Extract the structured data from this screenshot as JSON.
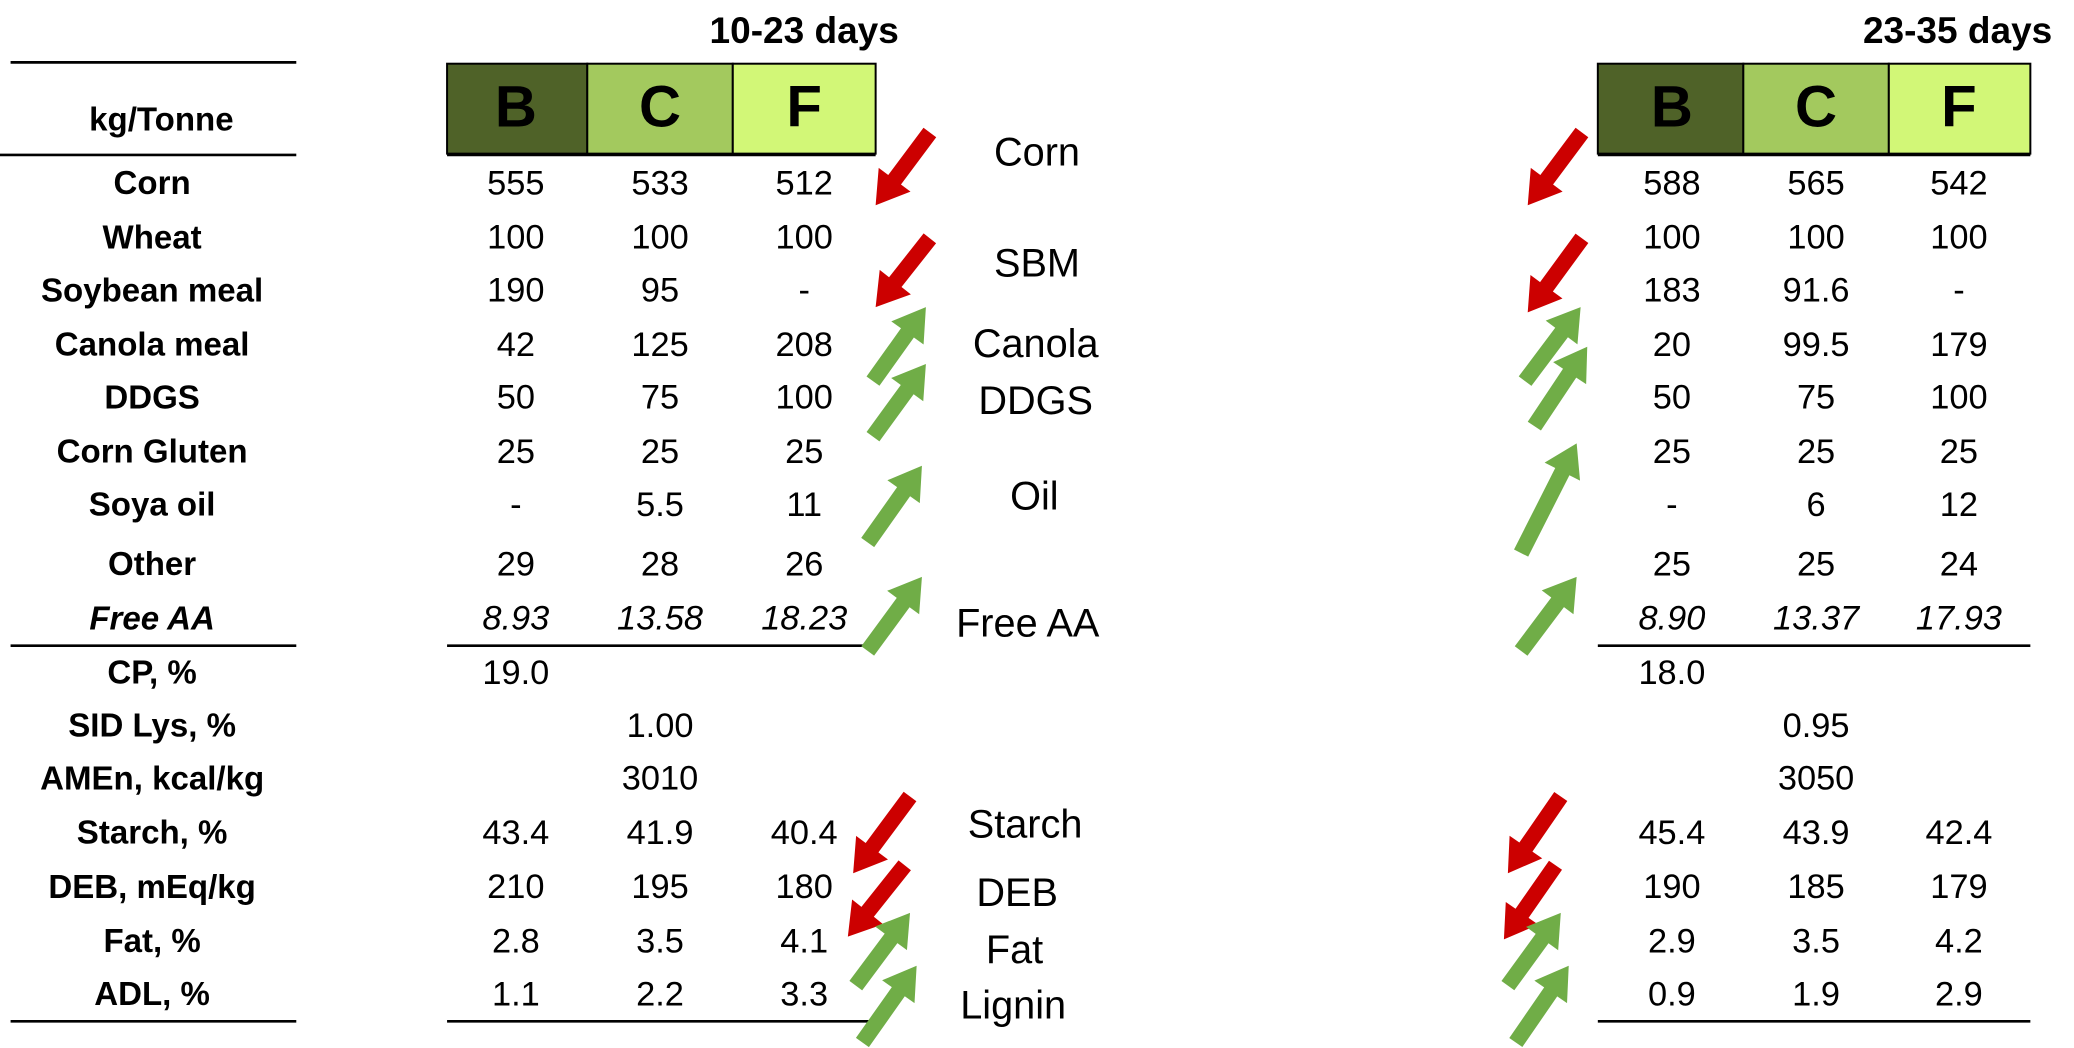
{
  "periods": [
    {
      "title": "10-23 days",
      "columns": [
        "B",
        "C",
        "F"
      ]
    },
    {
      "title": "23-35 days",
      "columns": [
        "B",
        "C",
        "F"
      ]
    }
  ],
  "unit_header": "kg/Tonne",
  "rows": [
    {
      "label": "Corn",
      "left": [
        "555",
        "533",
        "512"
      ],
      "right": [
        "588",
        "565",
        "542"
      ]
    },
    {
      "label": "Wheat",
      "left": [
        "100",
        "100",
        "100"
      ],
      "right": [
        "100",
        "100",
        "100"
      ]
    },
    {
      "label": "Soybean meal",
      "left": [
        "190",
        "95",
        "-"
      ],
      "right": [
        "183",
        "91.6",
        "-"
      ]
    },
    {
      "label": "Canola meal",
      "left": [
        "42",
        "125",
        "208"
      ],
      "right": [
        "20",
        "99.5",
        "179"
      ]
    },
    {
      "label": "DDGS",
      "left": [
        "50",
        "75",
        "100"
      ],
      "right": [
        "50",
        "75",
        "100"
      ]
    },
    {
      "label": "Corn Gluten",
      "left": [
        "25",
        "25",
        "25"
      ],
      "right": [
        "25",
        "25",
        "25"
      ]
    },
    {
      "label": "Soya oil",
      "left": [
        "-",
        "5.5",
        "11"
      ],
      "right": [
        "-",
        "6",
        "12"
      ]
    },
    {
      "label": "Other",
      "left": [
        "29",
        "28",
        "26"
      ],
      "right": [
        "25",
        "25",
        "24"
      ]
    },
    {
      "label": "Free AA",
      "left": [
        "8.93",
        "13.58",
        "18.23"
      ],
      "right": [
        "8.90",
        "13.37",
        "17.93"
      ]
    },
    {
      "label": "CP, %",
      "left": [
        "19.0",
        null,
        null
      ],
      "right": [
        "18.0",
        null,
        null
      ]
    },
    {
      "label": "SID Lys, %",
      "left": [
        null,
        "1.00",
        null
      ],
      "right": [
        null,
        "0.95",
        null
      ]
    },
    {
      "label": "AMEn, kcal/kg",
      "left": [
        null,
        "3010",
        null
      ],
      "right": [
        null,
        "3050",
        null
      ]
    },
    {
      "label": "Starch, %",
      "left": [
        "43.4",
        "41.9",
        "40.4"
      ],
      "right": [
        "45.4",
        "43.9",
        "42.4"
      ]
    },
    {
      "label": "DEB, mEq/kg",
      "left": [
        "210",
        "195",
        "180"
      ],
      "right": [
        "190",
        "185",
        "179"
      ]
    },
    {
      "label": "Fat, %",
      "left": [
        "2.8",
        "3.5",
        "4.1"
      ],
      "right": [
        "2.9",
        "3.5",
        "4.2"
      ]
    },
    {
      "label": "ADL, %",
      "left": [
        "1.1",
        "2.2",
        "3.3"
      ],
      "right": [
        "0.9",
        "1.9",
        "2.9"
      ]
    }
  ],
  "changes": [
    "Corn",
    "SBM",
    "Canola",
    "DDGS",
    "Oil",
    "Free AA",
    "Starch",
    "DEB",
    "Fat",
    "Lignin"
  ]
}
